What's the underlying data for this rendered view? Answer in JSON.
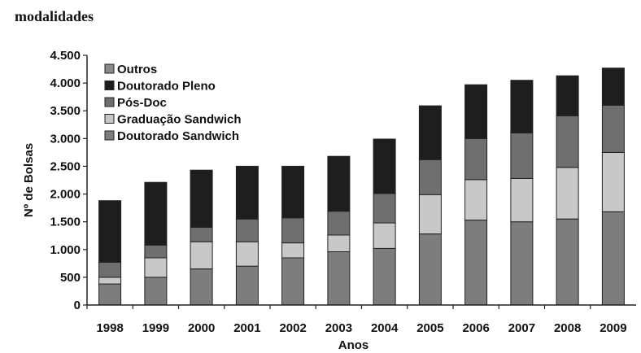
{
  "heading": "modalidades",
  "colors": {
    "Doutorado Sandwich": "#7d7d7d",
    "Graduação Sandwich": "#c8c8c8",
    "Pós-Doc": "#6f6f6f",
    "Doutorado Pleno": "#1e1e1e",
    "Outros": "#8a8a8a"
  },
  "chart_data": {
    "type": "bar",
    "stacked": true,
    "categories": [
      "1998",
      "1999",
      "2000",
      "2001",
      "2002",
      "2003",
      "2004",
      "2005",
      "2006",
      "2007",
      "2008",
      "2009"
    ],
    "series": [
      {
        "name": "Doutorado Sandwich",
        "values": [
          380,
          500,
          650,
          700,
          850,
          960,
          1020,
          1280,
          1530,
          1500,
          1550,
          1680
        ]
      },
      {
        "name": "Graduação Sandwich",
        "values": [
          120,
          350,
          490,
          440,
          270,
          300,
          460,
          710,
          730,
          780,
          930,
          1070
        ]
      },
      {
        "name": "Pós-Doc",
        "values": [
          270,
          230,
          260,
          410,
          450,
          430,
          530,
          630,
          740,
          820,
          930,
          850
        ]
      },
      {
        "name": "Doutorado Pleno",
        "values": [
          1110,
          1130,
          1030,
          950,
          930,
          990,
          980,
          970,
          970,
          950,
          720,
          670
        ]
      },
      {
        "name": "Outros",
        "values": [
          0,
          0,
          0,
          0,
          0,
          0,
          0,
          0,
          0,
          0,
          0,
          0
        ]
      }
    ],
    "legend_order": [
      "Outros",
      "Doutorado Pleno",
      "Pós-Doc",
      "Graduação Sandwich",
      "Doutorado Sandwich"
    ],
    "legend_position": "top-left",
    "xlabel": "Anos",
    "ylabel": "Nº de Bolsas",
    "ylim": [
      0,
      4500
    ],
    "yticks": [
      0,
      500,
      1000,
      1500,
      2000,
      2500,
      3000,
      3500,
      4000,
      4500
    ],
    "ytick_labels": [
      "0",
      "500",
      "1.000",
      "1.500",
      "2.000",
      "2.500",
      "3.000",
      "3.500",
      "4.000",
      "4.500"
    ],
    "grid": false
  }
}
